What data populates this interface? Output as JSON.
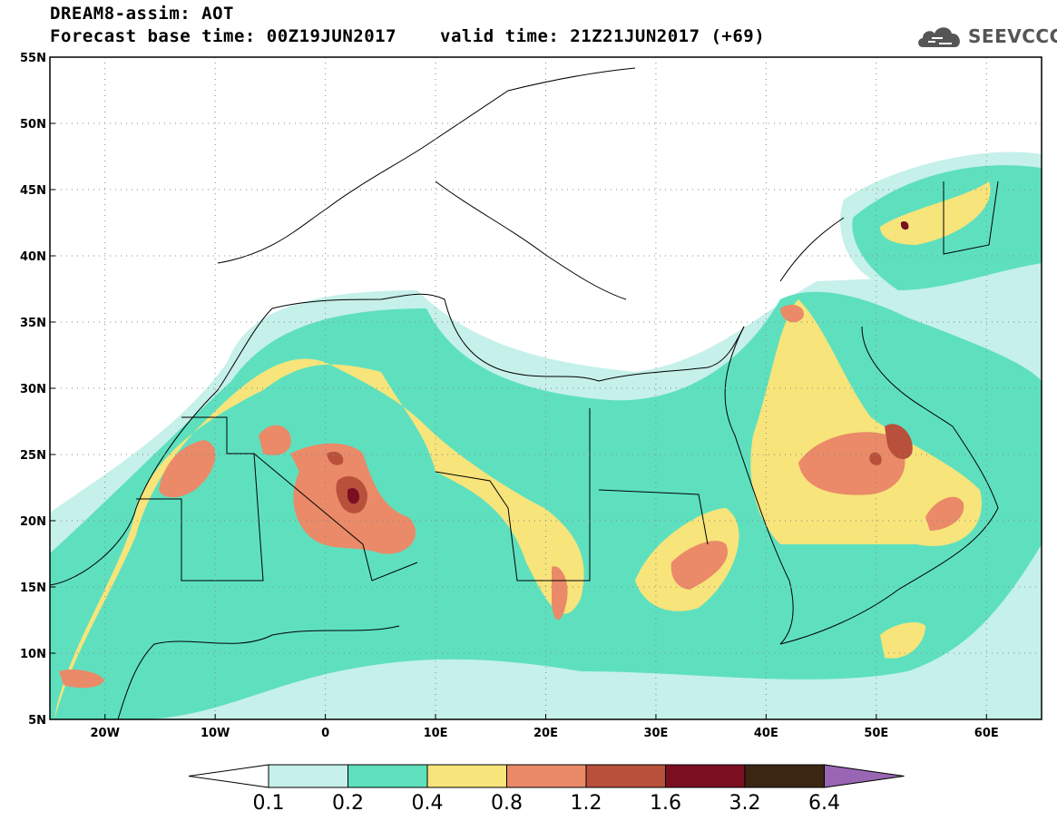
{
  "header": {
    "line1": "DREAM8-assim: AOT",
    "base_time": "Forecast base time: 00Z19JUN2017",
    "valid_time": "valid time: 21Z21JUN2017 (+69)",
    "logo_text": "SEEVCCC"
  },
  "map": {
    "lon_range": [
      -25,
      65
    ],
    "lat_range": [
      5,
      55
    ],
    "lat_ticks": [
      {
        "value": 55,
        "label": "55N"
      },
      {
        "value": 50,
        "label": "50N"
      },
      {
        "value": 45,
        "label": "45N"
      },
      {
        "value": 40,
        "label": "40N"
      },
      {
        "value": 35,
        "label": "35N"
      },
      {
        "value": 30,
        "label": "30N"
      },
      {
        "value": 25,
        "label": "25N"
      },
      {
        "value": 20,
        "label": "20N"
      },
      {
        "value": 15,
        "label": "15N"
      },
      {
        "value": 10,
        "label": "10N"
      },
      {
        "value": 5,
        "label": "5N"
      }
    ],
    "lon_ticks": [
      {
        "value": -20,
        "label": "20W"
      },
      {
        "value": -10,
        "label": "10W"
      },
      {
        "value": 0,
        "label": "0"
      },
      {
        "value": 10,
        "label": "10E"
      },
      {
        "value": 20,
        "label": "20E"
      },
      {
        "value": 30,
        "label": "30E"
      },
      {
        "value": 40,
        "label": "40E"
      },
      {
        "value": 50,
        "label": "50E"
      },
      {
        "value": 60,
        "label": "60E"
      }
    ]
  },
  "colorbar": {
    "colors": [
      "#c6f0ea",
      "#5ee0bf",
      "#f7e47a",
      "#ea8a68",
      "#b8503c",
      "#7a0f22",
      "#3b2614"
    ],
    "end_low": "#ffffff",
    "end_high": "#9966b3",
    "labels": [
      "0.1",
      "0.2",
      "0.4",
      "0.8",
      "1.2",
      "1.6",
      "3.2",
      "6.4"
    ]
  }
}
